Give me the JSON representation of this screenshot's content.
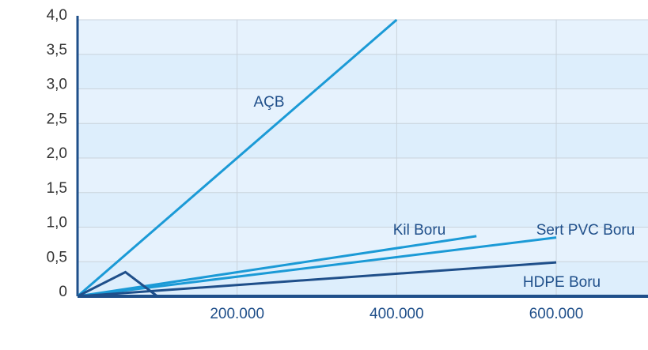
{
  "chart_data": {
    "type": "line",
    "xlim": [
      0,
      715000
    ],
    "ylim": [
      0,
      4
    ],
    "xticks": [
      {
        "value": 200000,
        "label": "200.000"
      },
      {
        "value": 400000,
        "label": "400.000"
      },
      {
        "value": 600000,
        "label": "600.000"
      }
    ],
    "yticks": [
      {
        "value": 0,
        "label": "0"
      },
      {
        "value": 0.5,
        "label": "0,5"
      },
      {
        "value": 1,
        "label": "1,0"
      },
      {
        "value": 1.5,
        "label": "1,5"
      },
      {
        "value": 2,
        "label": "2,0"
      },
      {
        "value": 2.5,
        "label": "2,5"
      },
      {
        "value": 3,
        "label": "3,0"
      },
      {
        "value": 3.5,
        "label": "3,5"
      },
      {
        "value": 4,
        "label": "4,0"
      }
    ],
    "grid": true,
    "series": [
      {
        "name": "AÇB",
        "color": "#1b9ad6",
        "x": [
          0,
          400000
        ],
        "values": [
          0,
          4
        ]
      },
      {
        "name": "Kil Boru",
        "color": "#1b9ad6",
        "x": [
          0,
          500000
        ],
        "values": [
          0,
          0.87
        ]
      },
      {
        "name": "Sert PVC Boru",
        "color": "#1b9ad6",
        "x": [
          0,
          600000
        ],
        "values": [
          0,
          0.85
        ]
      },
      {
        "name": "HDPE Boru",
        "color": "#1f4f8a",
        "x": [
          0,
          600000
        ],
        "values": [
          0,
          0.49
        ]
      },
      {
        "color": "#1f4f8a",
        "x": [
          0,
          60000,
          100000
        ],
        "values": [
          0,
          0.35,
          0
        ]
      }
    ]
  }
}
